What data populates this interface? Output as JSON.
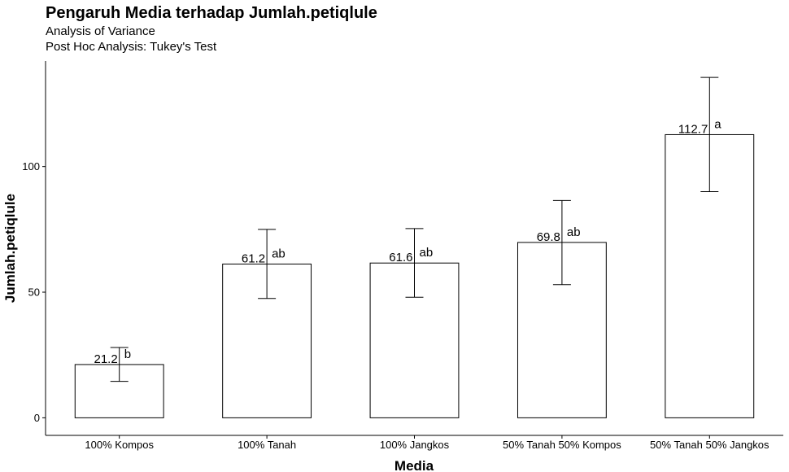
{
  "chart_data": {
    "type": "bar",
    "title": "Pengaruh Media terhadap Jumlah.petiqlule",
    "subtitles": [
      "Analysis of Variance",
      "Post Hoc Analysis: Tukey's Test"
    ],
    "xlabel": "Media",
    "ylabel": "Jumlah.petiqlule",
    "categories": [
      "100% Kompos",
      "100% Tanah",
      "100% Jangkos",
      "50% Tanah 50% Kompos",
      "50% Tanah 50% Jangkos"
    ],
    "values": [
      21.2,
      61.2,
      61.6,
      69.8,
      112.7
    ],
    "value_labels": [
      "21.2",
      "61.2",
      "61.6",
      "69.8",
      "112.7"
    ],
    "error_low": [
      14.5,
      47.5,
      48.0,
      53.0,
      90.0
    ],
    "error_high": [
      28.0,
      75.0,
      75.3,
      86.5,
      135.5
    ],
    "letters": [
      "b",
      "ab",
      "ab",
      "ab",
      "a"
    ],
    "yticks": [
      0,
      50,
      100
    ],
    "ytick_labels": [
      "0",
      "50",
      "100"
    ],
    "ylim": [
      -7,
      142
    ],
    "grid": false,
    "legend": "none",
    "bar_fill": "#ffffff",
    "bar_stroke": "#000000"
  }
}
